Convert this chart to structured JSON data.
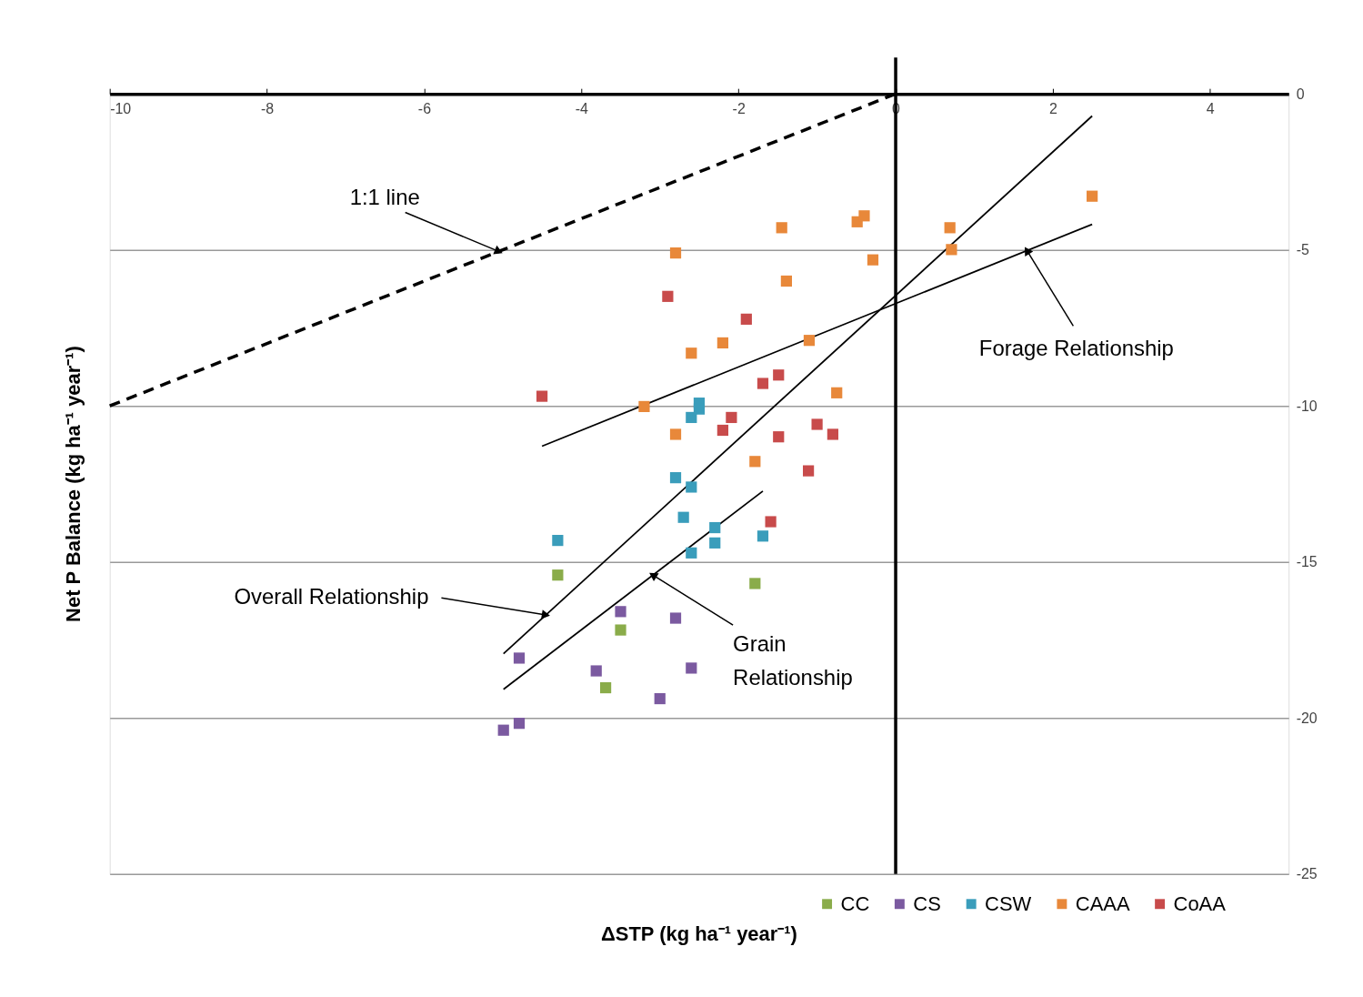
{
  "chart_data": {
    "type": "scatter",
    "xlabel": "ΔSTP (kg ha⁻¹ year⁻¹)",
    "ylabel": "Net P Balance (kg ha⁻¹ year⁻¹)",
    "xlim": [
      -10,
      5
    ],
    "ylim": [
      -25,
      0
    ],
    "xticks": [
      -10,
      -8,
      -6,
      -4,
      -2,
      0,
      2,
      4
    ],
    "yticks": [
      0,
      -5,
      -10,
      -15,
      -20,
      -25
    ],
    "grid": "y",
    "legend": "bottom right",
    "marker": "square",
    "ref_lines": [
      {
        "axis": "x",
        "value": 0,
        "color": "#000000"
      }
    ],
    "series": [
      {
        "name": "CC",
        "color": "#8aac4a",
        "x": [
          -4.3,
          -3.5,
          -3.69,
          -1.79
        ],
        "values": [
          -15.42,
          -17.18,
          -19.03,
          -15.69
        ]
      },
      {
        "name": "CS",
        "color": "#7b5aa0",
        "x": [
          -4.79,
          -3.5,
          -2.8,
          -3.81,
          -2.6,
          -3.0,
          -4.99,
          -4.79
        ],
        "values": [
          -18.08,
          -16.59,
          -16.8,
          -18.49,
          -18.4,
          -19.38,
          -20.39,
          -20.17
        ]
      },
      {
        "name": "CSW",
        "color": "#3a9dbb",
        "x": [
          -4.3,
          -2.5,
          -2.5,
          -2.6,
          -2.8,
          -2.6,
          -2.7,
          -2.3,
          -2.3,
          -2.6,
          -1.69
        ],
        "values": [
          -14.31,
          -9.91,
          -10.1,
          -10.37,
          -12.3,
          -12.6,
          -13.57,
          -13.9,
          -14.39,
          -14.71,
          -14.17
        ]
      },
      {
        "name": "CAAA",
        "color": "#e8883a",
        "x": [
          2.5,
          -1.45,
          -0.49,
          -0.4,
          0.69,
          -2.8,
          0.71,
          -0.29,
          -1.39,
          -2.6,
          -2.2,
          -1.1,
          -0.75,
          -3.2,
          -2.8,
          -1.79
        ],
        "values": [
          -3.28,
          -4.29,
          -4.1,
          -3.91,
          -4.29,
          -5.1,
          -4.99,
          -5.32,
          -6.0,
          -8.31,
          -7.98,
          -7.9,
          -9.58,
          -10.02,
          -10.91,
          -11.78
        ]
      },
      {
        "name": "CoAA",
        "color": "#c84b4b",
        "x": [
          -4.5,
          -2.9,
          -1.9,
          -1.69,
          -1.49,
          -2.09,
          -2.2,
          -1.49,
          -1.0,
          -0.8,
          -1.11,
          -1.59
        ],
        "values": [
          -9.69,
          -6.49,
          -7.22,
          -9.28,
          -9.01,
          -10.37,
          -10.78,
          -10.99,
          -10.59,
          -10.91,
          -12.08,
          -13.71
        ]
      },
      {
        "type": "line",
        "color": "#000000",
        "line_style": "dashed",
        "marker": "none",
        "x": [
          -10,
          0
        ],
        "values": [
          -10,
          0
        ]
      },
      {
        "type": "line",
        "color": "#000000",
        "line_style": "solid",
        "marker": "none",
        "x": [
          -4.99,
          2.5
        ],
        "values": [
          -17.94,
          -0.71
        ]
      },
      {
        "type": "line",
        "color": "#000000",
        "line_style": "solid",
        "marker": "none",
        "x": [
          -4.99,
          -1.69
        ],
        "values": [
          -19.08,
          -12.73
        ]
      },
      {
        "type": "line",
        "color": "#000000",
        "line_style": "solid",
        "marker": "none",
        "x": [
          -4.5,
          2.5
        ],
        "values": [
          -11.29,
          -4.18
        ]
      }
    ],
    "annotations": [
      {
        "text": "1:1 line",
        "x": -5.05,
        "y": -5.05
      },
      {
        "text": "Overall Relationship",
        "x": -4.45,
        "y": -16.7
      },
      {
        "text": "Grain Relationship",
        "x": -3.09,
        "y": -15.42
      },
      {
        "text": "Forage Relationship",
        "x": 1.67,
        "y": -5.02
      }
    ]
  }
}
